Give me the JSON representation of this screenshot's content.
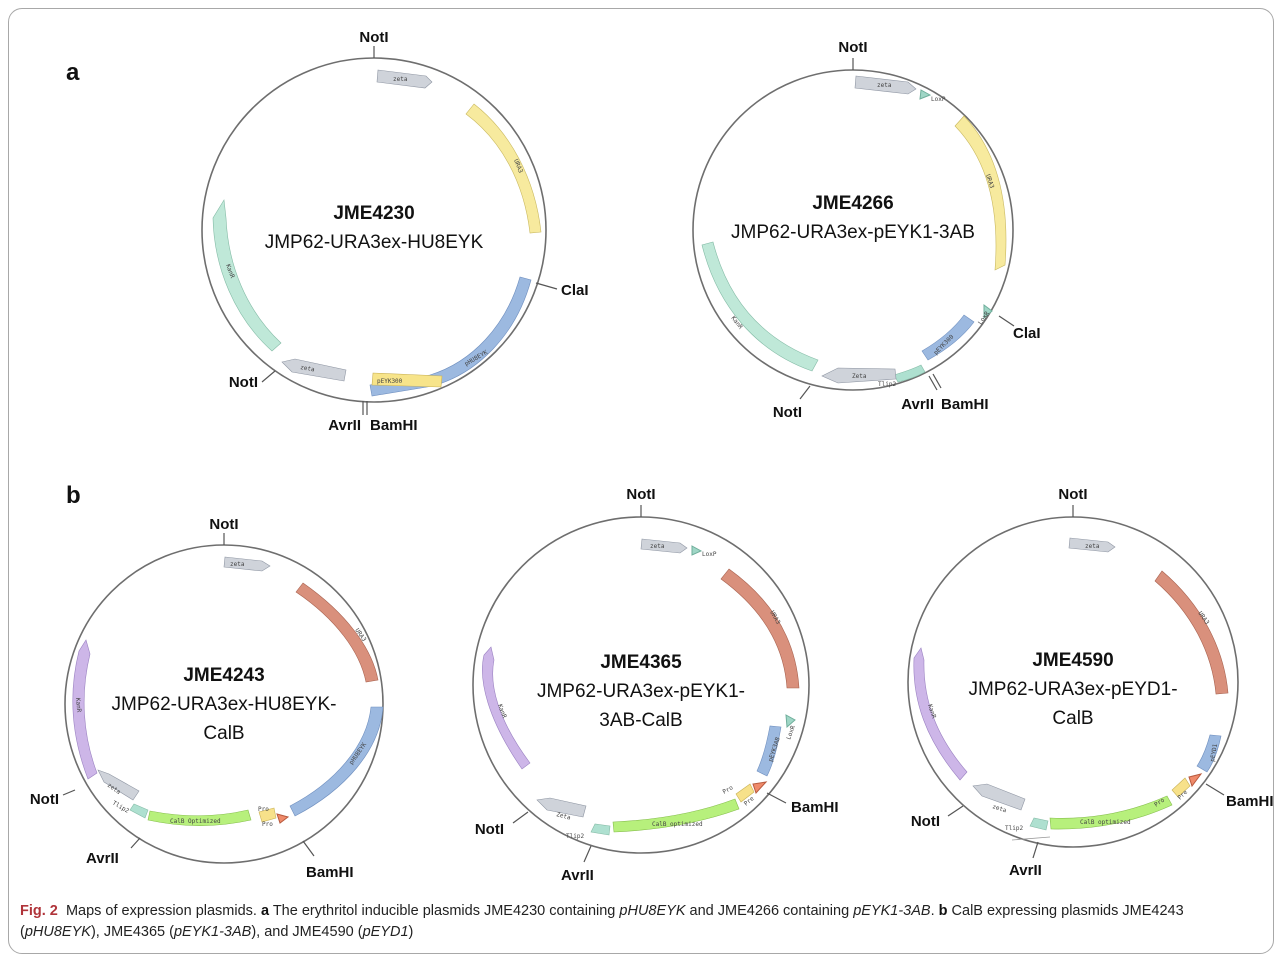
{
  "panel_labels": {
    "a": "a",
    "b": "b"
  },
  "colors": {
    "zeta": "#cfd3da",
    "ura3": "#f7ea9e",
    "kan": "#bfe8d8",
    "promoter_blue": "#9cb9e0",
    "pEYK300": "#f7e48a",
    "loxp": "#9fd6c6",
    "tlip2": "#aee0d0",
    "ura3_b": "#d9907c",
    "kan_b": "#cdb6e8",
    "calb": "#b7f07c",
    "pro": "#f7e18a",
    "pre": "#ef8a6a"
  },
  "plasmids": [
    {
      "id": "JME4230",
      "name": "JME4230",
      "desc": [
        "JMP62-URA3ex-HU8EYK"
      ],
      "features": [
        {
          "label": "zeta",
          "color": "#cfd3da"
        },
        {
          "label": "URA3",
          "color": "#f7ea9e"
        },
        {
          "label": "pHU8EYK",
          "color": "#9cb9e0"
        },
        {
          "label": "pEYK300",
          "color": "#f7e48a"
        },
        {
          "label": "zeta",
          "color": "#cfd3da"
        },
        {
          "label": "KanR",
          "color": "#bfe8d8"
        }
      ],
      "sites": [
        "NotI",
        "ClaI",
        "BamHI",
        "AvrII",
        "NotI"
      ]
    },
    {
      "id": "JME4266",
      "name": "JME4266",
      "desc": [
        "JMP62-URA3ex-pEYK1-3AB"
      ],
      "features": [
        {
          "label": "zeta",
          "color": "#cfd3da"
        },
        {
          "label": "LoxP",
          "color": "#9fd6c6"
        },
        {
          "label": "URA3",
          "color": "#f7ea9e"
        },
        {
          "label": "LoxR",
          "color": "#9fd6c6"
        },
        {
          "label": "pEYK300",
          "color": "#9cb9e0"
        },
        {
          "label": "Tlip2",
          "color": "#aee0d0"
        },
        {
          "label": "Zeta",
          "color": "#cfd3da"
        },
        {
          "label": "KanR",
          "color": "#bfe8d8"
        }
      ],
      "sites": [
        "NotI",
        "ClaI",
        "BamHI",
        "AvrII",
        "NotI"
      ]
    },
    {
      "id": "JME4243",
      "name": "JME4243",
      "desc": [
        "JMP62-URA3ex-HU8EYK-",
        "CalB"
      ],
      "features": [
        {
          "label": "zeta",
          "color": "#cfd3da"
        },
        {
          "label": "URA3",
          "color": "#d9907c"
        },
        {
          "label": "pHU8EYK",
          "color": "#9cb9e0"
        },
        {
          "label": "Pre",
          "color": "#ef8a6a"
        },
        {
          "label": "Pro",
          "color": "#f7e18a"
        },
        {
          "label": "CalB Optimized",
          "color": "#b7f07c"
        },
        {
          "label": "Tlip2",
          "color": "#aee0d0"
        },
        {
          "label": "zeta",
          "color": "#cfd3da"
        },
        {
          "label": "KanR",
          "color": "#cdb6e8"
        }
      ],
      "sites": [
        "NotI",
        "BamHI",
        "AvrII",
        "NotI"
      ]
    },
    {
      "id": "JME4365",
      "name": "JME4365",
      "desc": [
        "JMP62-URA3ex-pEYK1-",
        "3AB-CalB"
      ],
      "features": [
        {
          "label": "zeta",
          "color": "#cfd3da"
        },
        {
          "label": "LoxP",
          "color": "#9fd6c6"
        },
        {
          "label": "URA3",
          "color": "#d9907c"
        },
        {
          "label": "LoxR",
          "color": "#9fd6c6"
        },
        {
          "label": "pEYK3AB",
          "color": "#9cb9e0"
        },
        {
          "label": "Pre",
          "color": "#ef8a6a"
        },
        {
          "label": "Pro",
          "color": "#f7e18a"
        },
        {
          "label": "CalB optimized",
          "color": "#b7f07c"
        },
        {
          "label": "Tlip2",
          "color": "#aee0d0"
        },
        {
          "label": "Zeta",
          "color": "#cfd3da"
        },
        {
          "label": "KanR",
          "color": "#cdb6e8"
        }
      ],
      "sites": [
        "NotI",
        "BamHI",
        "AvrII",
        "NotI"
      ]
    },
    {
      "id": "JME4590",
      "name": "JME4590",
      "desc": [
        "JMP62-URA3ex-pEYD1-",
        "CalB"
      ],
      "features": [
        {
          "label": "zeta",
          "color": "#cfd3da"
        },
        {
          "label": "URA3",
          "color": "#d9907c"
        },
        {
          "label": "pEYD1",
          "color": "#9cb9e0"
        },
        {
          "label": "Pre",
          "color": "#ef8a6a"
        },
        {
          "label": "Pro",
          "color": "#f7e18a"
        },
        {
          "label": "CalB optimized",
          "color": "#b7f07c"
        },
        {
          "label": "Tlip2",
          "color": "#aee0d0"
        },
        {
          "label": "zeta",
          "color": "#cfd3da"
        },
        {
          "label": "KanR",
          "color": "#cdb6e8"
        }
      ],
      "sites": [
        "NotI",
        "BamHI",
        "AvrII",
        "NotI"
      ]
    }
  ],
  "caption": {
    "fig": "Fig. 2",
    "title": "Maps of expression plasmids.",
    "a_letter": "a",
    "a_text_1": "The erythritol inducible plasmids JME4230 containing",
    "a_gene_1": "pHU8EYK",
    "a_text_2": "and JME4266 containing",
    "a_gene_2": "pEYK1-3AB",
    "b_letter": "b",
    "b_text_1": "CalB expressing plasmids JME4243 (",
    "b_gene_1": "pHU8EYK",
    "b_text_2": "), JME4365 (",
    "b_gene_2": "pEYK1-3AB",
    "b_text_3": "), and JME4590 (",
    "b_gene_3": "pEYD1",
    "b_text_4": ")"
  }
}
